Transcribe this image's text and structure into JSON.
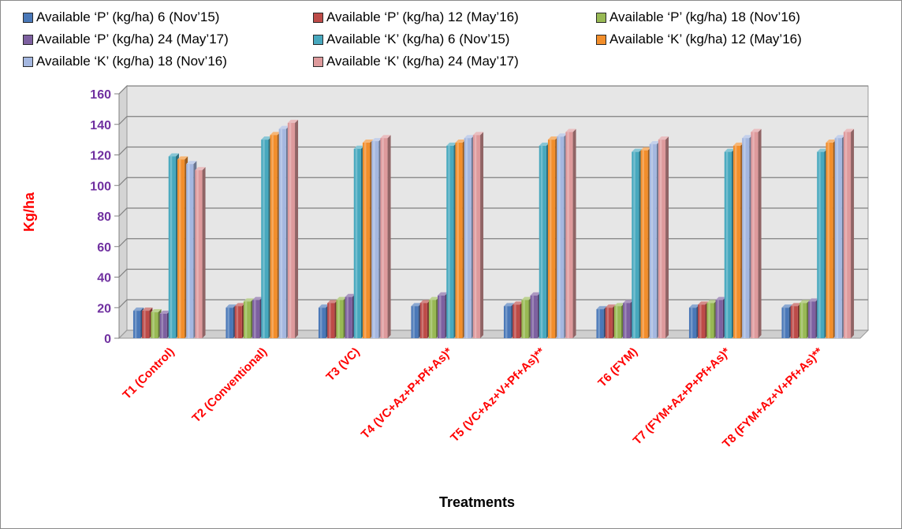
{
  "chart_data": {
    "type": "bar",
    "title": "",
    "xlabel": "Treatments",
    "ylabel": "Kg/ha",
    "ylim": [
      0,
      160
    ],
    "yticks": [
      0,
      20,
      40,
      60,
      80,
      100,
      120,
      140,
      160
    ],
    "grid": true,
    "legend_position": "top",
    "categories": [
      "T1 (Control)",
      "T2 (Conventional)",
      "T3 (VC)",
      "T4 (VC+Az+P+Pf+As)*",
      "T5 (VC+Az+V+Pf+As)**",
      "T6 (FYM)",
      "T7 (FYM+Az+P+Pf+As)*",
      "T8 (FYM+Az+V+Pf+As)**"
    ],
    "series": [
      {
        "name": "Available ‘P’ (kg/ha)  6 (Nov’15)",
        "color": "#4a78b8",
        "values": [
          18,
          20,
          20,
          21,
          21,
          19,
          20,
          20
        ]
      },
      {
        "name": "Available ‘P’ (kg/ha)  12 (May’16)",
        "color": "#bd4b48",
        "values": [
          18,
          21,
          23,
          23,
          22,
          20,
          22,
          21
        ]
      },
      {
        "name": "Available ‘P’ (kg/ha)  18 (Nov’16)",
        "color": "#98b954",
        "values": [
          17,
          24,
          25,
          25,
          25,
          21,
          23,
          23
        ]
      },
      {
        "name": "Available ‘P’ (kg/ha)  24 (May’17)",
        "color": "#7d60a0",
        "values": [
          16,
          25,
          27,
          28,
          28,
          23,
          25,
          24
        ]
      },
      {
        "name": "Available ‘K’ (kg/ha)  6 (Nov’15)",
        "color": "#47a8be",
        "values": [
          119,
          130,
          124,
          126,
          126,
          122,
          122,
          122
        ]
      },
      {
        "name": "Available ‘K’ (kg/ha)  12 (May’16)",
        "color": "#f28e2b",
        "values": [
          117,
          133,
          128,
          128,
          130,
          123,
          126,
          128
        ]
      },
      {
        "name": "Available ‘K’ (kg/ha)  18 (Nov’16)",
        "color": "#a4b7e0",
        "values": [
          114,
          137,
          129,
          131,
          132,
          127,
          131,
          131
        ]
      },
      {
        "name": "Available ‘K’ (kg/ha)  24 (May’17)",
        "color": "#de9a9c",
        "values": [
          110,
          141,
          131,
          133,
          135,
          130,
          135,
          135
        ]
      }
    ]
  }
}
